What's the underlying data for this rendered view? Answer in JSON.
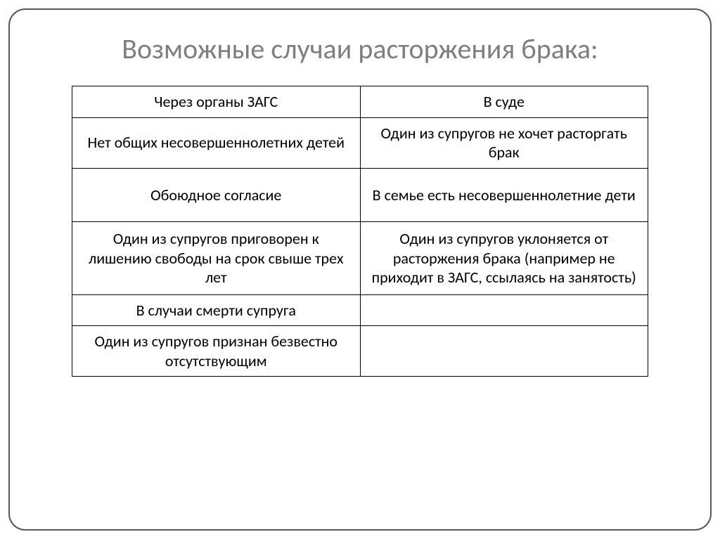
{
  "title": "Возможные случаи расторжения брака:",
  "table": {
    "type": "table",
    "border_color": "#000000",
    "text_color": "#000000",
    "header_fontsize": 22,
    "cell_fontsize": 22,
    "columns": [
      "Через органы ЗАГС",
      "В суде"
    ],
    "rows": [
      [
        "Нет общих несовершеннолетних детей",
        "Один из супругов не хочет расторгать брак"
      ],
      [
        "Обоюдное согласие",
        "В семье есть несовершеннолетние дети"
      ],
      [
        "Один из супругов приговорен к лишению свободы на срок свыше трех лет",
        "Один из супругов уклоняется от расторжения брака (например не приходит в ЗАГС, ссылаясь на занятость)"
      ],
      [
        "В случаи смерти супруга",
        ""
      ],
      [
        "Один из супругов признан безвестно отсутствующим",
        ""
      ]
    ]
  },
  "styling": {
    "title_color": "#7f7f7f",
    "title_fontsize": 40,
    "frame_border_color": "#595959",
    "frame_border_radius": 24,
    "background_color": "#ffffff"
  }
}
